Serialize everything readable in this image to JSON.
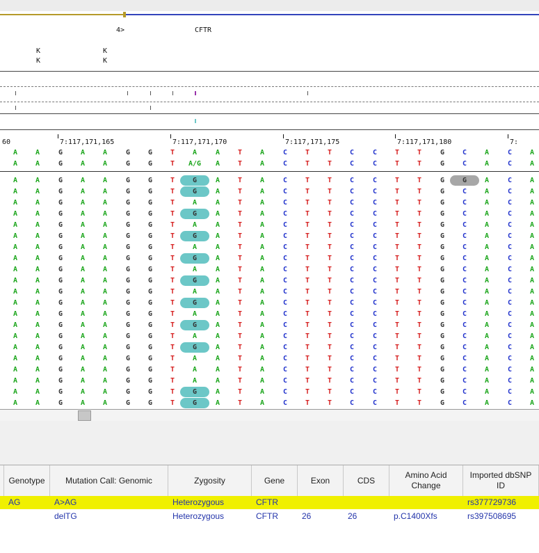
{
  "track": {
    "gene_label": "CFTR",
    "exon_label": "4>",
    "k_marks": [
      "K",
      "K"
    ]
  },
  "coordinates": [
    "60",
    "7:117,171,165",
    "7:117,171,170",
    "7:117,171,175",
    "7:117,171,180",
    "7:"
  ],
  "reference": [
    "A",
    "A",
    "G",
    "A",
    "A",
    "G",
    "G",
    "T",
    "A",
    "A",
    "T",
    "A",
    "C",
    "T",
    "T",
    "C",
    "C",
    "T",
    "T",
    "G",
    "C",
    "A",
    "C",
    "A"
  ],
  "consensus": [
    "A",
    "A",
    "G",
    "A",
    "A",
    "G",
    "G",
    "T",
    "A/G",
    "A",
    "T",
    "A",
    "C",
    "T",
    "T",
    "C",
    "C",
    "T",
    "T",
    "G",
    "C",
    "A",
    "C",
    "A"
  ],
  "reads": {
    "count": 21,
    "variant_column_G_rows": [
      0,
      1,
      3,
      5,
      7,
      9,
      11,
      13,
      15,
      19,
      20
    ],
    "insertion_row_value": "G"
  },
  "colors": {
    "A": "#1aa51a",
    "G": "#333333",
    "T": "#d61f1f",
    "C": "#2233cc",
    "highlight": "#6cc7c7",
    "selected_row": "#f0f000"
  },
  "table": {
    "headers": [
      "",
      "Genotype",
      "Mutation Call: Genomic",
      "Zygosity",
      "Gene",
      "Exon",
      "CDS",
      "Amino Acid Change",
      "Imported dbSNP ID"
    ],
    "rows": [
      {
        "selected": true,
        "cells": [
          "",
          "AG",
          "A>AG",
          "Heterozygous",
          "CFTR",
          "",
          "",
          "",
          "rs377729736"
        ]
      },
      {
        "selected": false,
        "cells": [
          "",
          "",
          "delTG",
          "Heterozygous",
          "CFTR",
          "26",
          "26",
          "p.C1400Xfs",
          "rs397508695"
        ]
      }
    ]
  }
}
